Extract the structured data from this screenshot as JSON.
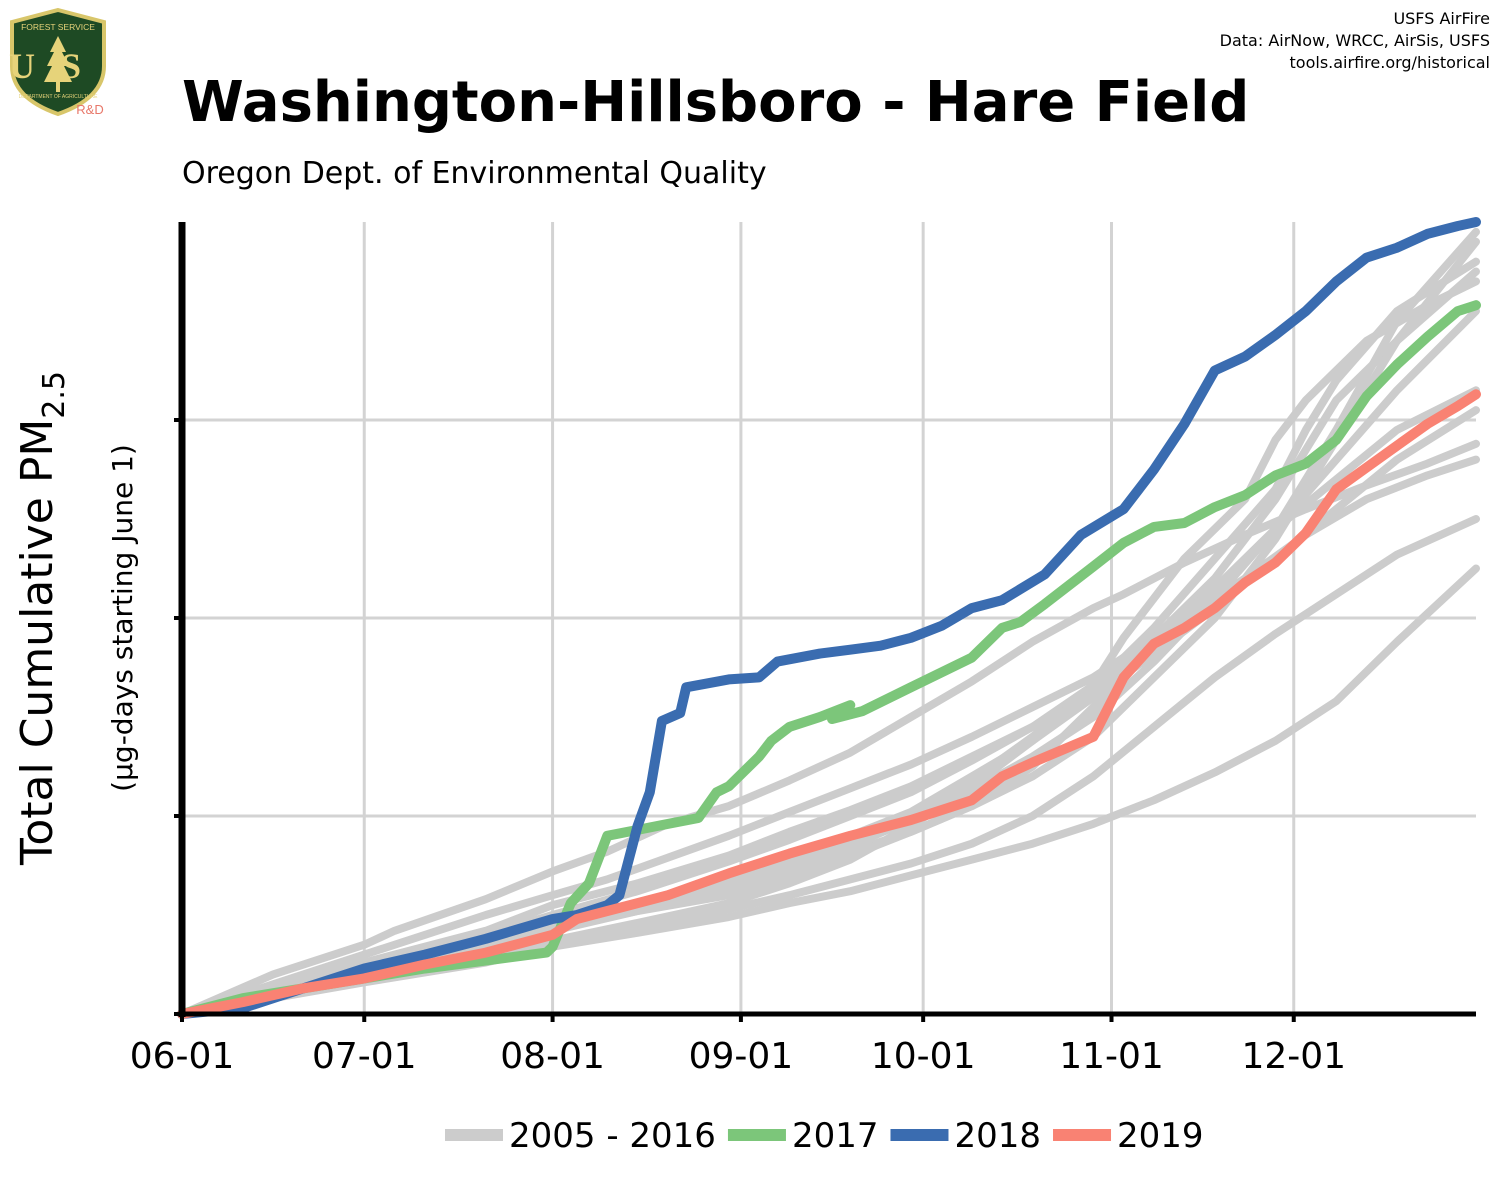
{
  "header": {
    "title": "Washington-Hillsboro - Hare Field",
    "subtitle": "Oregon Dept. of Environmental Quality",
    "credits": [
      "USFS AirFire",
      "Data: AirNow, WRCC, AirSis, USFS",
      "tools.airfire.org/historical"
    ]
  },
  "logo": {
    "top_text": "FOREST SERVICE",
    "letters": "US",
    "bottom_text": "DEPARTMENT OF AGRICULTURE",
    "badge": "R&D",
    "colors": {
      "shield": "#1e4a24",
      "border": "#d8c66a",
      "letters": "#e6d37a",
      "badge": "#e8786a"
    }
  },
  "chart_data": {
    "type": "line",
    "ylabel": "Total Cumulative PM",
    "ylabel_subscript": "2.5",
    "ylabel_units": "(µg-days starting June 1)",
    "x_ticks": [
      "06-01",
      "07-01",
      "08-01",
      "09-01",
      "10-01",
      "11-01",
      "12-01"
    ],
    "x_tick_days": [
      0,
      30,
      61,
      92,
      122,
      153,
      183
    ],
    "x_range_days": [
      0,
      213
    ],
    "y_range": [
      0,
      4
    ],
    "y_ticks": [
      0,
      1,
      2,
      3
    ],
    "y_tick_labels_shown": false,
    "grid": true,
    "legend_position": "bottom",
    "legend": [
      {
        "label": "2005 - 2016",
        "color": "#cccccc"
      },
      {
        "label": "2017",
        "color": "#7cc67a"
      },
      {
        "label": "2018",
        "color": "#3a6cb0"
      },
      {
        "label": "2019",
        "color": "#f98273"
      }
    ],
    "series": [
      {
        "name": "2017",
        "color": "#7cc67a",
        "x": [
          0,
          10,
          20,
          30,
          40,
          50,
          60,
          61,
          64,
          67,
          70,
          75,
          80,
          85,
          88,
          90,
          95,
          97,
          100,
          105,
          110,
          107,
          112,
          120,
          130,
          135,
          138,
          142,
          150,
          155,
          160,
          165,
          170,
          175,
          180,
          185,
          190,
          195,
          200,
          205,
          210,
          213
        ],
        "y": [
          0,
          0.08,
          0.13,
          0.18,
          0.23,
          0.27,
          0.31,
          0.34,
          0.56,
          0.66,
          0.9,
          0.93,
          0.96,
          0.99,
          1.12,
          1.15,
          1.3,
          1.38,
          1.45,
          1.5,
          1.56,
          1.49,
          1.53,
          1.65,
          1.8,
          1.95,
          1.98,
          2.07,
          2.26,
          2.38,
          2.46,
          2.48,
          2.56,
          2.62,
          2.72,
          2.78,
          2.9,
          3.12,
          3.28,
          3.42,
          3.55,
          3.58
        ]
      },
      {
        "name": "2018",
        "color": "#3a6cb0",
        "x": [
          0,
          10,
          20,
          30,
          40,
          50,
          61,
          65,
          70,
          72,
          75,
          77,
          79,
          82,
          83,
          90,
          95,
          98,
          105,
          110,
          115,
          120,
          125,
          130,
          135,
          142,
          148,
          155,
          160,
          165,
          170,
          175,
          180,
          185,
          190,
          195,
          200,
          205,
          210,
          213
        ],
        "y": [
          0,
          0.03,
          0.13,
          0.23,
          0.3,
          0.38,
          0.48,
          0.5,
          0.55,
          0.6,
          0.95,
          1.12,
          1.48,
          1.52,
          1.65,
          1.69,
          1.7,
          1.78,
          1.82,
          1.84,
          1.86,
          1.9,
          1.96,
          2.05,
          2.09,
          2.22,
          2.42,
          2.55,
          2.75,
          2.98,
          3.25,
          3.32,
          3.43,
          3.55,
          3.7,
          3.82,
          3.87,
          3.94,
          3.98,
          4.0
        ]
      },
      {
        "name": "2019",
        "color": "#f98273",
        "x": [
          0,
          10,
          20,
          30,
          40,
          50,
          61,
          65,
          70,
          80,
          90,
          100,
          110,
          120,
          130,
          135,
          140,
          150,
          155,
          160,
          165,
          170,
          175,
          180,
          185,
          190,
          195,
          200,
          205,
          210,
          213
        ],
        "y": [
          0,
          0.06,
          0.13,
          0.18,
          0.25,
          0.31,
          0.4,
          0.48,
          0.52,
          0.6,
          0.71,
          0.81,
          0.9,
          0.98,
          1.08,
          1.2,
          1.27,
          1.4,
          1.7,
          1.87,
          1.95,
          2.05,
          2.18,
          2.28,
          2.43,
          2.65,
          2.76,
          2.87,
          2.98,
          3.07,
          3.13
        ]
      }
    ],
    "background_series_2005_2016": [
      {
        "x": [
          0,
          15,
          30,
          35,
          50,
          61,
          70,
          80,
          90,
          100,
          110,
          120,
          130,
          140,
          150,
          155,
          165,
          175,
          185,
          195,
          205,
          213
        ],
        "y": [
          0,
          0.2,
          0.35,
          0.42,
          0.58,
          0.72,
          0.82,
          0.96,
          1.05,
          1.18,
          1.32,
          1.5,
          1.68,
          1.88,
          2.05,
          2.12,
          2.28,
          2.42,
          2.55,
          2.67,
          2.78,
          2.88
        ]
      },
      {
        "x": [
          0,
          15,
          30,
          50,
          61,
          70,
          80,
          90,
          100,
          110,
          120,
          130,
          140,
          150,
          155,
          165,
          175,
          185,
          195,
          205,
          213
        ],
        "y": [
          0,
          0.15,
          0.3,
          0.5,
          0.6,
          0.68,
          0.79,
          0.9,
          1.02,
          1.14,
          1.26,
          1.4,
          1.55,
          1.7,
          1.8,
          2.0,
          2.2,
          2.42,
          2.6,
          2.72,
          2.8
        ]
      },
      {
        "x": [
          0,
          15,
          30,
          50,
          61,
          75,
          90,
          100,
          110,
          120,
          130,
          140,
          150,
          155,
          165,
          175,
          180,
          185,
          195,
          205,
          213
        ],
        "y": [
          0,
          0.12,
          0.25,
          0.4,
          0.5,
          0.62,
          0.77,
          0.88,
          1.0,
          1.12,
          1.28,
          1.45,
          1.66,
          1.9,
          2.3,
          2.6,
          2.9,
          3.1,
          3.4,
          3.58,
          3.7
        ]
      },
      {
        "x": [
          0,
          15,
          30,
          50,
          61,
          75,
          90,
          100,
          110,
          120,
          130,
          140,
          150,
          160,
          170,
          180,
          185,
          190,
          200,
          213
        ],
        "y": [
          0,
          0.1,
          0.22,
          0.35,
          0.45,
          0.55,
          0.68,
          0.78,
          0.9,
          1.02,
          1.2,
          1.38,
          1.6,
          1.9,
          2.2,
          2.6,
          2.85,
          3.1,
          3.4,
          3.75
        ]
      },
      {
        "x": [
          0,
          15,
          30,
          50,
          61,
          75,
          90,
          100,
          110,
          120,
          130,
          140,
          150,
          160,
          170,
          180,
          185,
          190,
          200,
          213
        ],
        "y": [
          0,
          0.11,
          0.23,
          0.36,
          0.46,
          0.56,
          0.68,
          0.78,
          0.88,
          1.0,
          1.18,
          1.4,
          1.65,
          1.95,
          2.3,
          2.65,
          2.95,
          3.2,
          3.55,
          3.8
        ]
      },
      {
        "x": [
          0,
          15,
          30,
          50,
          61,
          75,
          90,
          100,
          110,
          120,
          130,
          140,
          150,
          160,
          170,
          180,
          190,
          200,
          213
        ],
        "y": [
          0,
          0.1,
          0.2,
          0.32,
          0.42,
          0.52,
          0.62,
          0.72,
          0.82,
          0.92,
          1.05,
          1.2,
          1.4,
          1.7,
          2.0,
          2.4,
          2.9,
          3.4,
          3.9
        ]
      },
      {
        "x": [
          0,
          15,
          30,
          50,
          61,
          75,
          90,
          100,
          110,
          120,
          130,
          140,
          150,
          160,
          170,
          180,
          190,
          200,
          213
        ],
        "y": [
          0,
          0.09,
          0.2,
          0.33,
          0.43,
          0.52,
          0.6,
          0.7,
          0.8,
          0.92,
          1.05,
          1.25,
          1.55,
          1.85,
          2.15,
          2.45,
          2.95,
          3.5,
          3.95
        ]
      },
      {
        "x": [
          0,
          15,
          30,
          50,
          61,
          75,
          90,
          100,
          110,
          120,
          130,
          140,
          150,
          160,
          170,
          180,
          190,
          200,
          213
        ],
        "y": [
          0,
          0.08,
          0.17,
          0.28,
          0.36,
          0.44,
          0.53,
          0.6,
          0.68,
          0.76,
          0.86,
          1.0,
          1.2,
          1.45,
          1.7,
          1.92,
          2.12,
          2.32,
          2.5
        ]
      },
      {
        "x": [
          0,
          15,
          30,
          50,
          61,
          75,
          90,
          100,
          110,
          120,
          130,
          140,
          150,
          160,
          170,
          180,
          190,
          200,
          213
        ],
        "y": [
          0,
          0.08,
          0.16,
          0.26,
          0.34,
          0.41,
          0.49,
          0.56,
          0.62,
          0.7,
          0.78,
          0.86,
          0.96,
          1.08,
          1.22,
          1.38,
          1.58,
          1.88,
          2.25
        ]
      },
      {
        "x": [
          0,
          15,
          30,
          50,
          61,
          75,
          90,
          100,
          110,
          120,
          130,
          140,
          150,
          160,
          170,
          180,
          190,
          200,
          213
        ],
        "y": [
          0,
          0.1,
          0.19,
          0.29,
          0.37,
          0.46,
          0.56,
          0.66,
          0.78,
          0.95,
          1.15,
          1.38,
          1.62,
          1.9,
          2.15,
          2.45,
          2.7,
          2.95,
          3.15
        ]
      },
      {
        "x": [
          0,
          15,
          30,
          50,
          61,
          75,
          90,
          100,
          110,
          120,
          130,
          140,
          150,
          160,
          170,
          180,
          190,
          200,
          213
        ],
        "y": [
          0,
          0.12,
          0.26,
          0.42,
          0.55,
          0.66,
          0.8,
          0.92,
          1.03,
          1.15,
          1.3,
          1.45,
          1.6,
          1.82,
          2.05,
          2.3,
          2.55,
          2.8,
          3.05
        ]
      },
      {
        "x": [
          0,
          15,
          30,
          50,
          61,
          75,
          90,
          100,
          110,
          120,
          130,
          140,
          150,
          160,
          170,
          180,
          190,
          200,
          213
        ],
        "y": [
          0,
          0.11,
          0.22,
          0.34,
          0.44,
          0.54,
          0.64,
          0.74,
          0.85,
          0.98,
          1.13,
          1.3,
          1.5,
          1.78,
          2.1,
          2.45,
          2.8,
          3.15,
          3.55
        ]
      }
    ]
  }
}
